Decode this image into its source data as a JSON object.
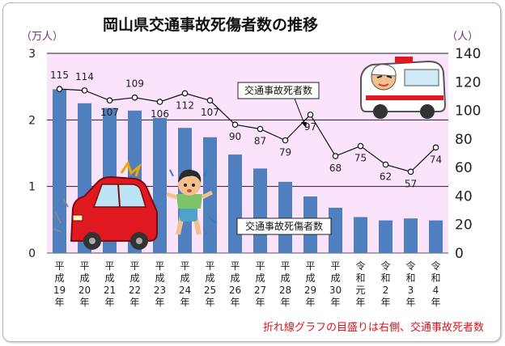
{
  "chart_data": {
    "type": "bar+line",
    "title": "岡山県交通事故死傷者数の推移",
    "left_unit": "（万人）",
    "right_unit": "（人）",
    "left_ticks": [
      "0",
      "1",
      "2",
      "3"
    ],
    "right_ticks": [
      "0",
      "20",
      "40",
      "60",
      "80",
      "100",
      "120",
      "140"
    ],
    "left_ylim": [
      0,
      3
    ],
    "right_ylim": [
      0,
      140
    ],
    "categories": [
      [
        "平",
        "成",
        "19",
        "年"
      ],
      [
        "平",
        "成",
        "20",
        "年"
      ],
      [
        "平",
        "成",
        "21",
        "年"
      ],
      [
        "平",
        "成",
        "22",
        "年"
      ],
      [
        "平",
        "成",
        "23",
        "年"
      ],
      [
        "平",
        "成",
        "24",
        "年"
      ],
      [
        "平",
        "成",
        "25",
        "年"
      ],
      [
        "平",
        "成",
        "26",
        "年"
      ],
      [
        "平",
        "成",
        "27",
        "年"
      ],
      [
        "平",
        "成",
        "28",
        "年"
      ],
      [
        "平",
        "成",
        "29",
        "年"
      ],
      [
        "平",
        "成",
        "30",
        "年"
      ],
      [
        "令",
        "和",
        "元",
        "年"
      ],
      [
        "令",
        "和",
        "2",
        "年"
      ],
      [
        "令",
        "和",
        "3",
        "年"
      ],
      [
        "令",
        "和",
        "4",
        "年"
      ]
    ],
    "series": [
      {
        "name": "交通事故死傷者数",
        "type": "bar",
        "axis": "left",
        "values": [
          2.46,
          2.25,
          2.18,
          2.14,
          2.03,
          1.88,
          1.74,
          1.48,
          1.27,
          1.07,
          0.85,
          0.68,
          0.54,
          0.49,
          0.52,
          0.49
        ]
      },
      {
        "name": "交通事故死者数",
        "type": "line",
        "axis": "right",
        "values": [
          115,
          114,
          107,
          109,
          106,
          112,
          107,
          90,
          87,
          79,
          97,
          68,
          75,
          62,
          57,
          74
        ],
        "labels": [
          "115",
          "114",
          "107",
          "109",
          "106",
          "112",
          "107",
          "90",
          "87",
          "79",
          "97",
          "68",
          "75",
          "62",
          "57",
          "74"
        ]
      }
    ],
    "note": "折れ線グラフの目盛りは右側、交通事故死者数",
    "grid": "horizontal",
    "colors": {
      "plot_background": "#fbe3fb",
      "bar": "#4f7fbe",
      "line": "#111111",
      "gridline": "#222222",
      "note": "#d4141c",
      "unit": "#7a2a7a"
    }
  }
}
